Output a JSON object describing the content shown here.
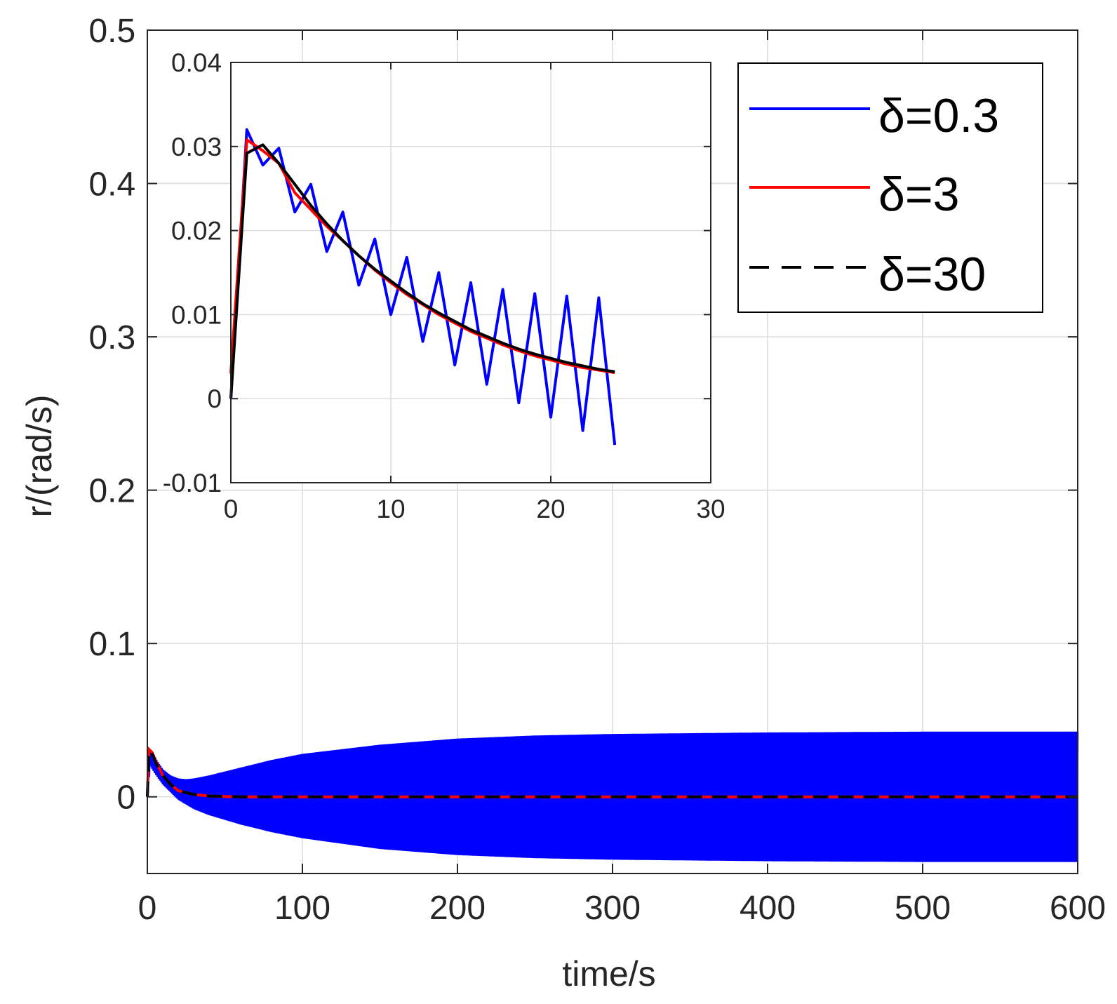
{
  "chart_data": [
    {
      "id": "main",
      "type": "line",
      "xlabel": "time/s",
      "ylabel": "r/(rad/s)",
      "xlim": [
        0,
        600
      ],
      "ylim": [
        -0.05,
        0.5
      ],
      "xticks": [
        0,
        100,
        200,
        300,
        400,
        500,
        600
      ],
      "xtick_labels": [
        "0",
        "100",
        "200",
        "300",
        "400",
        "500",
        "600"
      ],
      "yticks": [
        0,
        0.1,
        0.2,
        0.3,
        0.4,
        0.5
      ],
      "ytick_labels": [
        "0",
        "0.1",
        "0.2",
        "0.3",
        "0.4",
        "0.5"
      ],
      "grid": true,
      "legend_position": "top-right",
      "series": [
        {
          "name": "δ=0.3",
          "color": "#0000ff",
          "style": "oscillation-envelope",
          "upper": [
            [
              0,
              0
            ],
            [
              1,
              0.031
            ],
            [
              3,
              0.03
            ],
            [
              6,
              0.024
            ],
            [
              10,
              0.018
            ],
            [
              15,
              0.014
            ],
            [
              20,
              0.012
            ],
            [
              25,
              0.0115
            ],
            [
              30,
              0.012
            ],
            [
              40,
              0.014
            ],
            [
              60,
              0.019
            ],
            [
              80,
              0.024
            ],
            [
              100,
              0.028
            ],
            [
              150,
              0.034
            ],
            [
              200,
              0.038
            ],
            [
              250,
              0.04
            ],
            [
              300,
              0.041
            ],
            [
              400,
              0.042
            ],
            [
              500,
              0.0425
            ],
            [
              600,
              0.0425
            ]
          ],
          "lower": [
            [
              0,
              0
            ],
            [
              2,
              0.02
            ],
            [
              5,
              0.015
            ],
            [
              10,
              0.008
            ],
            [
              15,
              0.003
            ],
            [
              20,
              -0.002
            ],
            [
              30,
              -0.008
            ],
            [
              40,
              -0.012
            ],
            [
              60,
              -0.018
            ],
            [
              80,
              -0.023
            ],
            [
              100,
              -0.027
            ],
            [
              150,
              -0.034
            ],
            [
              200,
              -0.038
            ],
            [
              250,
              -0.04
            ],
            [
              300,
              -0.041
            ],
            [
              400,
              -0.042
            ],
            [
              500,
              -0.0425
            ],
            [
              600,
              -0.0425
            ]
          ]
        },
        {
          "name": "δ=3",
          "color": "#ff0000",
          "style": "solid",
          "points": [
            [
              0,
              0
            ],
            [
              1,
              0.031
            ],
            [
              3,
              0.029
            ],
            [
              6,
              0.022
            ],
            [
              10,
              0.014
            ],
            [
              15,
              0.008
            ],
            [
              20,
              0.004
            ],
            [
              30,
              0.0015
            ],
            [
              40,
              0.0005
            ],
            [
              60,
              0
            ],
            [
              600,
              0
            ]
          ]
        },
        {
          "name": "δ=30",
          "color": "#000000",
          "style": "dashed",
          "points": [
            [
              0,
              0
            ],
            [
              1,
              0.029
            ],
            [
              2,
              0.0305
            ],
            [
              4,
              0.026
            ],
            [
              6,
              0.021
            ],
            [
              10,
              0.014
            ],
            [
              15,
              0.008
            ],
            [
              20,
              0.004
            ],
            [
              30,
              0.0015
            ],
            [
              40,
              0.0005
            ],
            [
              60,
              0
            ],
            [
              600,
              0
            ]
          ]
        }
      ]
    },
    {
      "id": "inset",
      "type": "line",
      "xlim": [
        0,
        30
      ],
      "ylim": [
        -0.01,
        0.04
      ],
      "xticks": [
        0,
        10,
        20,
        30
      ],
      "xtick_labels": [
        "0",
        "10",
        "20",
        "30"
      ],
      "yticks": [
        -0.01,
        0,
        0.01,
        0.02,
        0.03,
        0.04
      ],
      "ytick_labels": [
        "-0.01",
        "0",
        "0.01",
        "0.02",
        "0.03",
        "0.04"
      ],
      "grid": true,
      "series": [
        {
          "name": "δ=0.3",
          "color": "#0000ff",
          "style": "solid",
          "points": [
            [
              0,
              0
            ],
            [
              1,
              0.032
            ],
            [
              2,
              0.0278
            ],
            [
              3,
              0.0298
            ],
            [
              4,
              0.0222
            ],
            [
              5,
              0.0255
            ],
            [
              6,
              0.0175
            ],
            [
              7,
              0.0222
            ],
            [
              8,
              0.0135
            ],
            [
              9,
              0.019
            ],
            [
              10,
              0.01
            ],
            [
              11,
              0.0168
            ],
            [
              12,
              0.0068
            ],
            [
              13,
              0.015
            ],
            [
              14,
              0.004
            ],
            [
              15,
              0.0138
            ],
            [
              16,
              0.0017
            ],
            [
              17,
              0.013
            ],
            [
              18,
              -0.0005
            ],
            [
              19,
              0.0125
            ],
            [
              20,
              -0.0022
            ],
            [
              21,
              0.0122
            ],
            [
              22,
              -0.0038
            ],
            [
              23,
              0.012
            ],
            [
              24,
              -0.0055
            ]
          ]
        },
        {
          "name": "δ=3",
          "color": "#ff0000",
          "style": "solid",
          "points": [
            [
              0,
              0.003
            ],
            [
              1,
              0.0308
            ],
            [
              2,
              0.0295
            ],
            [
              3,
              0.028
            ],
            [
              4,
              0.0245
            ],
            [
              5,
              0.0225
            ],
            [
              6,
              0.0205
            ],
            [
              7,
              0.0188
            ],
            [
              8,
              0.017
            ],
            [
              9,
              0.0153
            ],
            [
              10,
              0.0138
            ],
            [
              11,
              0.0124
            ],
            [
              12,
              0.0112
            ],
            [
              13,
              0.01
            ],
            [
              14,
              0.009
            ],
            [
              15,
              0.008
            ],
            [
              16,
              0.0072
            ],
            [
              17,
              0.0064
            ],
            [
              18,
              0.0057
            ],
            [
              19,
              0.0051
            ],
            [
              20,
              0.0046
            ],
            [
              21,
              0.0041
            ],
            [
              22,
              0.0037
            ],
            [
              23,
              0.0034
            ],
            [
              24,
              0.0031
            ]
          ]
        },
        {
          "name": "δ=30",
          "color": "#000000",
          "style": "solid",
          "points": [
            [
              0,
              0
            ],
            [
              1,
              0.0292
            ],
            [
              2,
              0.0302
            ],
            [
              3,
              0.028
            ],
            [
              4,
              0.0255
            ],
            [
              5,
              0.023
            ],
            [
              6,
              0.0208
            ],
            [
              7,
              0.0188
            ],
            [
              8,
              0.017
            ],
            [
              9,
              0.0154
            ],
            [
              10,
              0.014
            ],
            [
              11,
              0.0126
            ],
            [
              12,
              0.0113
            ],
            [
              13,
              0.0102
            ],
            [
              14,
              0.0092
            ],
            [
              15,
              0.0082
            ],
            [
              16,
              0.0074
            ],
            [
              17,
              0.0066
            ],
            [
              18,
              0.0059
            ],
            [
              19,
              0.0053
            ],
            [
              20,
              0.0048
            ],
            [
              21,
              0.0043
            ],
            [
              22,
              0.0039
            ],
            [
              23,
              0.0035
            ],
            [
              24,
              0.0032
            ]
          ]
        }
      ]
    }
  ],
  "legend": {
    "items": [
      {
        "label": "δ=0.3",
        "color": "#0000ff",
        "style": "solid"
      },
      {
        "label": "δ=3",
        "color": "#ff0000",
        "style": "solid"
      },
      {
        "label": "δ=30",
        "color": "#000000",
        "style": "dashed"
      }
    ]
  }
}
